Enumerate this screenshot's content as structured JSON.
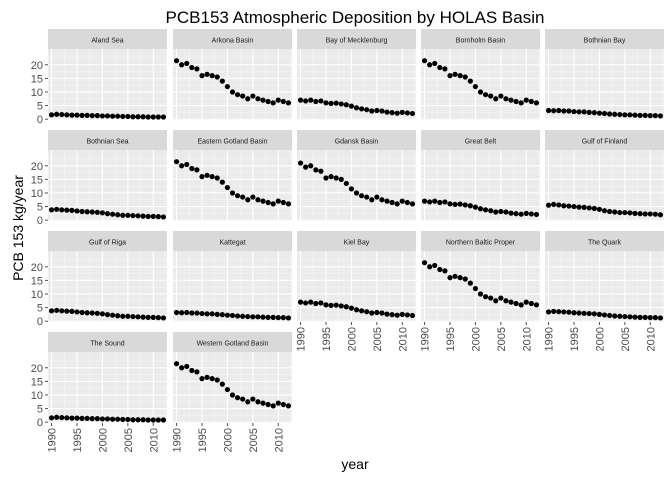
{
  "chart_data": {
    "type": "scatter",
    "title": "PCB153 Atmospheric Deposition by HOLAS Basin",
    "xlabel": "year",
    "ylabel": "PCB 153 kg/year",
    "xlim": [
      1989.3,
      2012.7
    ],
    "ylim": [
      -0.3,
      25.8
    ],
    "x_ticks": [
      1990,
      1995,
      2000,
      2005,
      2010
    ],
    "y_ticks": [
      0,
      5,
      10,
      15,
      20
    ],
    "grid": true,
    "x": [
      1990,
      1991,
      1992,
      1993,
      1994,
      1995,
      1996,
      1997,
      1998,
      1999,
      2000,
      2001,
      2002,
      2003,
      2004,
      2005,
      2006,
      2007,
      2008,
      2009,
      2010,
      2011,
      2012
    ],
    "panels": [
      {
        "name": "Aland Sea",
        "values": [
          1.6,
          1.8,
          1.7,
          1.6,
          1.5,
          1.5,
          1.4,
          1.4,
          1.3,
          1.3,
          1.2,
          1.2,
          1.1,
          1.1,
          1.0,
          1.0,
          0.9,
          0.9,
          0.9,
          0.8,
          0.8,
          0.8,
          0.8
        ]
      },
      {
        "name": "Arkona Basin",
        "values": [
          21.5,
          20.0,
          20.5,
          19.0,
          18.5,
          16.0,
          16.5,
          16.0,
          15.5,
          14.0,
          12.0,
          10.0,
          9.0,
          8.5,
          7.5,
          8.5,
          7.5,
          7.0,
          6.5,
          6.0,
          7.0,
          6.5,
          6.0
        ]
      },
      {
        "name": "Bay of Mecklenburg",
        "values": [
          7.0,
          6.7,
          7.0,
          6.5,
          6.7,
          6.0,
          5.8,
          5.9,
          5.6,
          5.3,
          4.8,
          4.2,
          3.8,
          3.5,
          3.0,
          3.2,
          3.0,
          2.6,
          2.4,
          2.2,
          2.5,
          2.3,
          2.1
        ]
      },
      {
        "name": "Bornholm Basin",
        "values": [
          21.5,
          20.0,
          20.5,
          19.0,
          18.5,
          16.0,
          16.5,
          16.0,
          15.5,
          14.0,
          12.0,
          10.0,
          9.0,
          8.5,
          7.5,
          8.5,
          7.5,
          7.0,
          6.5,
          6.0,
          7.0,
          6.5,
          6.0
        ]
      },
      {
        "name": "Bothnian Bay",
        "values": [
          3.2,
          3.1,
          3.2,
          3.0,
          3.0,
          2.8,
          2.7,
          2.7,
          2.5,
          2.4,
          2.2,
          2.1,
          1.9,
          1.8,
          1.7,
          1.6,
          1.6,
          1.5,
          1.4,
          1.4,
          1.3,
          1.3,
          1.2
        ]
      },
      {
        "name": "Bothnian Sea",
        "values": [
          3.8,
          4.0,
          3.8,
          3.7,
          3.6,
          3.4,
          3.2,
          3.1,
          3.0,
          2.9,
          2.7,
          2.4,
          2.2,
          2.0,
          1.8,
          1.8,
          1.7,
          1.6,
          1.5,
          1.4,
          1.4,
          1.3,
          1.2
        ]
      },
      {
        "name": "Eastern Gotland Basin",
        "values": [
          21.5,
          20.0,
          20.5,
          19.0,
          18.5,
          16.0,
          16.5,
          16.0,
          15.5,
          14.0,
          12.0,
          10.0,
          9.0,
          8.5,
          7.5,
          8.5,
          7.5,
          7.0,
          6.5,
          6.0,
          7.0,
          6.5,
          6.0
        ]
      },
      {
        "name": "Gdansk Basin",
        "values": [
          21.0,
          19.5,
          20.0,
          18.5,
          18.0,
          15.5,
          16.0,
          15.5,
          15.0,
          13.5,
          11.5,
          10.0,
          9.0,
          8.5,
          7.5,
          8.5,
          7.5,
          7.0,
          6.5,
          6.0,
          7.0,
          6.5,
          6.0
        ]
      },
      {
        "name": "Great Belt",
        "values": [
          7.0,
          6.7,
          7.0,
          6.5,
          6.7,
          6.0,
          5.8,
          5.9,
          5.6,
          5.3,
          4.8,
          4.2,
          3.8,
          3.5,
          3.0,
          3.2,
          3.0,
          2.6,
          2.4,
          2.2,
          2.5,
          2.3,
          2.1
        ]
      },
      {
        "name": "Gulf of Finland",
        "values": [
          5.5,
          5.8,
          5.6,
          5.3,
          5.2,
          5.0,
          4.8,
          4.7,
          4.5,
          4.3,
          4.0,
          3.5,
          3.2,
          3.0,
          2.8,
          2.8,
          2.7,
          2.5,
          2.4,
          2.3,
          2.3,
          2.2,
          2.0
        ]
      },
      {
        "name": "Gulf of Riga",
        "values": [
          3.8,
          4.0,
          3.8,
          3.7,
          3.6,
          3.4,
          3.2,
          3.1,
          3.0,
          2.9,
          2.7,
          2.4,
          2.2,
          2.0,
          1.8,
          1.8,
          1.7,
          1.6,
          1.5,
          1.4,
          1.4,
          1.3,
          1.2
        ]
      },
      {
        "name": "Kattegat",
        "values": [
          3.2,
          3.1,
          3.2,
          3.0,
          3.0,
          2.8,
          2.7,
          2.7,
          2.5,
          2.4,
          2.2,
          2.1,
          1.9,
          1.8,
          1.7,
          1.6,
          1.6,
          1.5,
          1.4,
          1.4,
          1.3,
          1.3,
          1.2
        ]
      },
      {
        "name": "Kiel Bay",
        "values": [
          7.0,
          6.7,
          7.0,
          6.5,
          6.7,
          6.0,
          5.8,
          5.9,
          5.6,
          5.3,
          4.8,
          4.2,
          3.8,
          3.5,
          3.0,
          3.2,
          3.0,
          2.6,
          2.4,
          2.2,
          2.5,
          2.3,
          2.1
        ]
      },
      {
        "name": "Northern Baltic Proper",
        "values": [
          21.5,
          20.0,
          20.5,
          19.0,
          18.5,
          16.0,
          16.5,
          16.0,
          15.5,
          14.0,
          12.0,
          10.0,
          9.0,
          8.5,
          7.5,
          8.5,
          7.5,
          7.0,
          6.5,
          6.0,
          7.0,
          6.5,
          6.0
        ]
      },
      {
        "name": "The Quark",
        "values": [
          3.4,
          3.6,
          3.5,
          3.4,
          3.3,
          3.1,
          3.0,
          2.9,
          2.8,
          2.7,
          2.5,
          2.3,
          2.1,
          1.9,
          1.8,
          1.7,
          1.6,
          1.5,
          1.4,
          1.4,
          1.3,
          1.3,
          1.2
        ]
      },
      {
        "name": "The Sound",
        "values": [
          1.6,
          1.8,
          1.7,
          1.6,
          1.5,
          1.5,
          1.4,
          1.4,
          1.3,
          1.3,
          1.2,
          1.2,
          1.1,
          1.1,
          1.0,
          1.0,
          0.9,
          0.9,
          0.9,
          0.8,
          0.8,
          0.8,
          0.8
        ]
      },
      {
        "name": "Western Gotland Basin",
        "values": [
          21.5,
          20.0,
          20.5,
          19.0,
          18.5,
          16.0,
          16.5,
          16.0,
          15.5,
          14.0,
          12.0,
          10.0,
          9.0,
          8.5,
          7.5,
          8.5,
          7.5,
          7.0,
          6.5,
          6.0,
          7.0,
          6.5,
          6.0
        ]
      }
    ]
  },
  "colors": {
    "panel_bg": "#ebebeb",
    "strip_bg": "#d9d9d9",
    "grid_major": "#ffffff",
    "grid_minor": "#f5f5f5",
    "point": "#000000",
    "tick": "#4d4d4d"
  }
}
